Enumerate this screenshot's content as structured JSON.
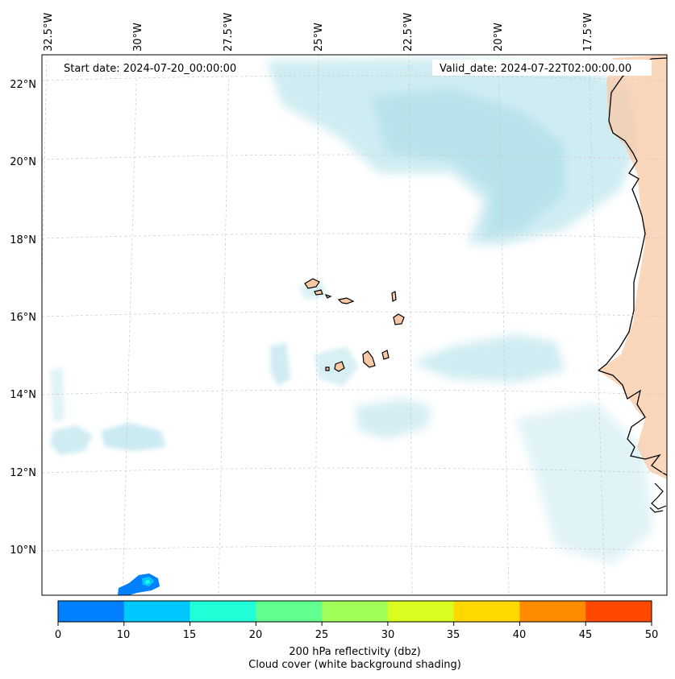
{
  "map": {
    "start_date": "Start date: 2024-07-20_00:00:00",
    "valid_date": "Valid_date: 2024-07-22T02:00:00.00",
    "lat_labels": [
      "22°N",
      "20°N",
      "18°N",
      "16°N",
      "14°N",
      "12°N",
      "10°N"
    ],
    "lon_labels": [
      "32.5°W",
      "30°W",
      "27.5°W",
      "25°W",
      "22.5°W",
      "20°W",
      "17.5°W"
    ]
  },
  "colorbar": {
    "ticks": [
      "0",
      "10",
      "15",
      "20",
      "25",
      "30",
      "35",
      "40",
      "45",
      "50"
    ],
    "colors": [
      "#0080ff",
      "#00c8ff",
      "#20ffd8",
      "#60ff90",
      "#a0ff58",
      "#d8ff20",
      "#ffd800",
      "#ff8c00",
      "#ff4800"
    ],
    "title_line1": "200 hPa reflectivity (dbz)",
    "title_line2": "Cloud cover (white background shading)"
  },
  "colors": {
    "cloud": "#a9dde8",
    "land": "#f8c8a4",
    "coast": "#000000",
    "grid": "#c8c8c8"
  }
}
